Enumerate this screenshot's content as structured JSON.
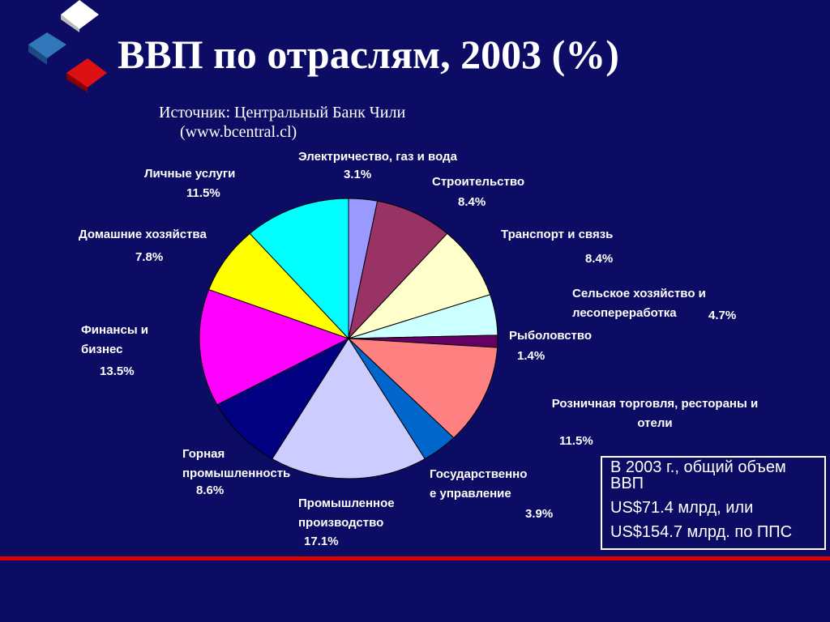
{
  "chart_data": {
    "type": "pie",
    "title": "ВВП по отраслям, 2003 (%)",
    "source": [
      "Источник: Центральный Банк Чили",
      "(www.bcentral.cl)"
    ],
    "categories": [
      "Электричество, газ и вода",
      "Строительство",
      "Транспорт и связь",
      "Сельское хозяйство и лесопереработка",
      "Рыболовство",
      "Розничная торговля, рестораны и отели",
      "Государственное управление",
      "Промышленное производство",
      "Горная промышленность",
      "Финансы и бизнес",
      "Домашние хозяйства",
      "Личные услуги"
    ],
    "values": [
      3.1,
      8.4,
      8.4,
      4.7,
      1.4,
      11.5,
      3.9,
      17.1,
      8.6,
      13.5,
      7.8,
      11.5
    ],
    "value_labels": [
      "3.1%",
      "8.4%",
      "8.4%",
      "4.7%",
      "1.4%",
      "11.5%",
      "3.9%",
      "17.1%",
      "8.6%",
      "13.5%",
      "7.8%",
      "11.5%"
    ],
    "colors": [
      "#9999ff",
      "#993366",
      "#ffffcc",
      "#ccffff",
      "#660066",
      "#ff8080",
      "#0066cc",
      "#ccccff",
      "#000080",
      "#ff00ff",
      "#ffff00",
      "#00ffff"
    ],
    "annotations": [
      "В 2003 г., общий объем ВВП",
      "US$71.4 млрд, или",
      "US$154.7 млрд. по ППС"
    ]
  }
}
